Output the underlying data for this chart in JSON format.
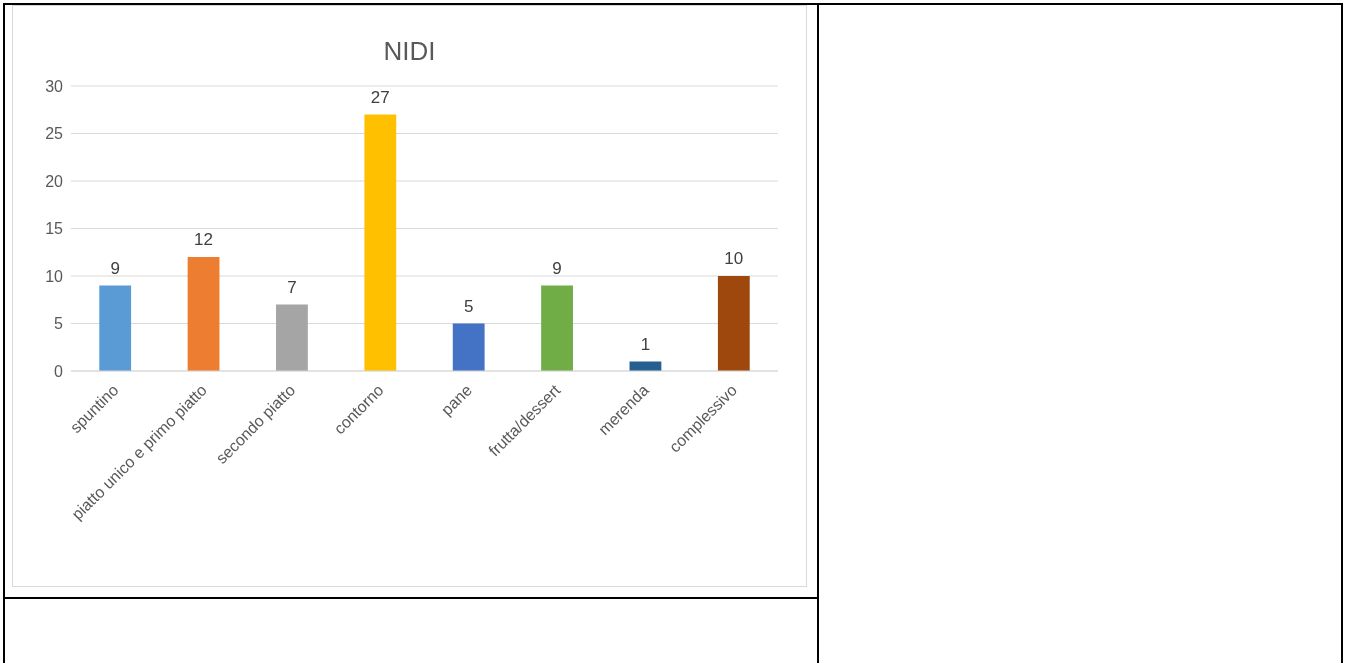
{
  "chart_data": {
    "type": "bar",
    "title": "NIDI",
    "categories": [
      "spuntino",
      "piatto unico e primo piatto",
      "secondo piatto",
      "contorno",
      "pane",
      "frutta/dessert",
      "merenda",
      "complessivo"
    ],
    "values": [
      9,
      12,
      7,
      27,
      5,
      9,
      1,
      10
    ],
    "colors": [
      "#5b9bd5",
      "#ed7d31",
      "#a5a5a5",
      "#ffc000",
      "#4472c4",
      "#70ad47",
      "#255e91",
      "#9e480e"
    ],
    "ylim": [
      0,
      30
    ],
    "yticks": [
      0,
      5,
      10,
      15,
      20,
      25,
      30
    ],
    "grid": "y",
    "data_labels": true
  }
}
